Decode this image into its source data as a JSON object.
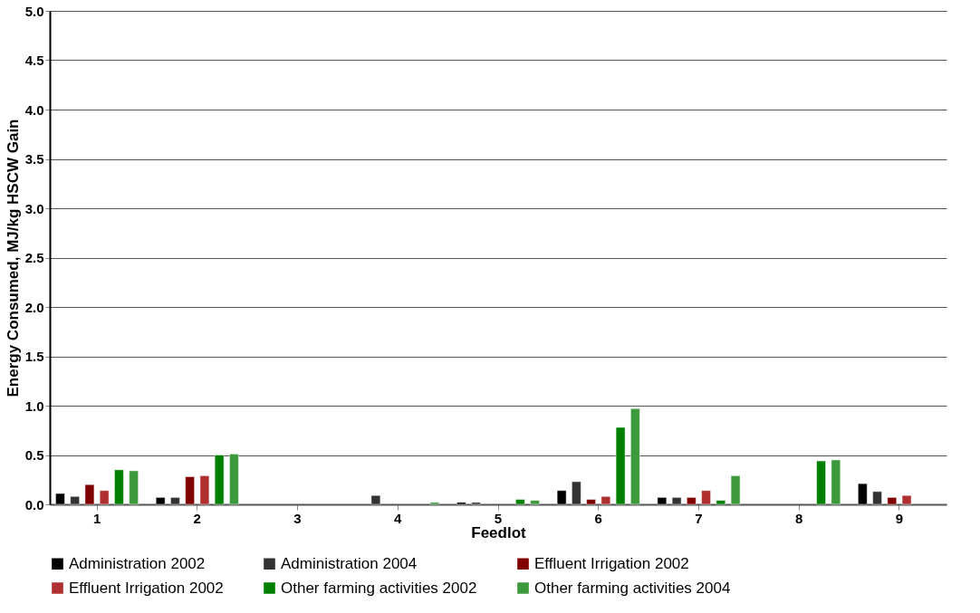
{
  "chart_data": {
    "type": "bar",
    "xlabel": "Feedlot",
    "ylabel": "Energy Consumed, MJ/kg HSCW Gain",
    "categories": [
      "1",
      "2",
      "3",
      "4",
      "5",
      "6",
      "7",
      "8",
      "9"
    ],
    "series": [
      {
        "name": "Administration 2002",
        "color": "#000000",
        "values": [
          0.11,
          0.07,
          null,
          null,
          0.02,
          0.14,
          0.07,
          null,
          0.21
        ]
      },
      {
        "name": "Administration 2004",
        "color": "#333333",
        "values": [
          0.08,
          0.07,
          null,
          0.09,
          0.02,
          0.23,
          0.07,
          null,
          0.13
        ]
      },
      {
        "name": "Effluent Irrigation 2002",
        "color": "#800000",
        "values": [
          0.2,
          0.28,
          null,
          null,
          null,
          0.05,
          0.07,
          null,
          0.07
        ]
      },
      {
        "name": "Effluent Irrigation 2002",
        "color": "#b03030",
        "values": [
          0.14,
          0.29,
          null,
          null,
          null,
          0.08,
          0.14,
          null,
          0.09
        ]
      },
      {
        "name": "Other farming activities 2002",
        "color": "#008000",
        "values": [
          0.35,
          0.5,
          null,
          null,
          0.05,
          0.78,
          0.04,
          0.44,
          null
        ]
      },
      {
        "name": "Other farming activities 2004",
        "color": "#3c9a3c",
        "values": [
          0.34,
          0.51,
          null,
          0.02,
          0.04,
          0.97,
          0.29,
          0.45,
          null
        ]
      }
    ],
    "ylim": [
      0,
      5
    ],
    "yticks": [
      {
        "value": 0,
        "label": "0.0"
      },
      0.5,
      {
        "value": 1,
        "label": "1.0"
      },
      1.5,
      {
        "value": 2,
        "label": "2.0"
      },
      2.5,
      {
        "value": 3,
        "label": "3.0"
      },
      3.5,
      {
        "value": 4,
        "label": "4.0"
      },
      4.5,
      {
        "value": 5,
        "label": "5.0"
      }
    ],
    "grid": "y",
    "legend": "bottom"
  }
}
